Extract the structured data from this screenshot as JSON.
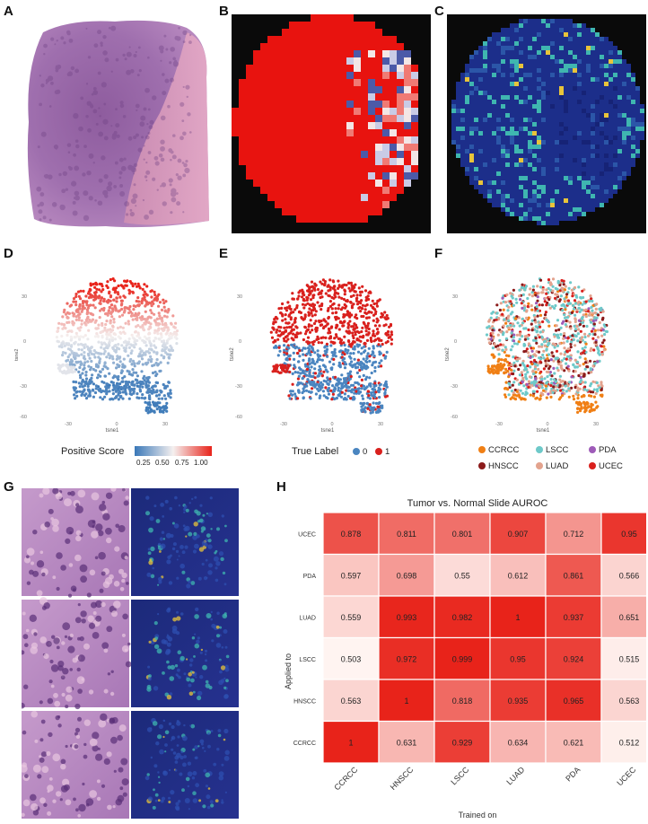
{
  "panels": {
    "A": "A",
    "B": "B",
    "C": "C",
    "D": "D",
    "E": "E",
    "F": "F",
    "G": "G",
    "H": "H"
  },
  "tsne": {
    "xlabel": "tsne1",
    "ylabel": "tsne2",
    "xticks": [
      "-30",
      "0",
      "30"
    ],
    "yticks": [
      "30",
      "0",
      "-30",
      "-60"
    ]
  },
  "legend_d": {
    "title": "Positive Score",
    "ticks": [
      "0.25",
      "0.50",
      "0.75",
      "1.00"
    ],
    "low_color": "#3a78b8",
    "mid_color": "#f5f0ef",
    "high_color": "#e8231a"
  },
  "legend_e": {
    "title": "True Label",
    "items": [
      {
        "label": "0",
        "color": "#4a85c0"
      },
      {
        "label": "1",
        "color": "#d9201d"
      }
    ]
  },
  "legend_f": {
    "items": [
      {
        "label": "CCRCC",
        "color": "#f07f14"
      },
      {
        "label": "LSCC",
        "color": "#6ec9c9"
      },
      {
        "label": "PDA",
        "color": "#9e5bb8"
      },
      {
        "label": "HNSCC",
        "color": "#8b1a1a"
      },
      {
        "label": "LUAD",
        "color": "#e3a38e"
      },
      {
        "label": "UCEC",
        "color": "#d9201d"
      }
    ]
  },
  "chart_data": {
    "type": "heatmap",
    "title": "Tumor vs. Normal Slide AUROC",
    "xlabel": "Trained on",
    "ylabel": "Applied to",
    "x_categories": [
      "CCRCC",
      "HNSCC",
      "LSCC",
      "LUAD",
      "PDA",
      "UCEC"
    ],
    "y_categories": [
      "UCEC",
      "PDA",
      "LUAD",
      "LSCC",
      "HNSCC",
      "CCRCC"
    ],
    "values": [
      [
        "0.878",
        "0.811",
        "0.801",
        "0.907",
        "0.712",
        "0.95"
      ],
      [
        "0.597",
        "0.698",
        "0.55",
        "0.612",
        "0.861",
        "0.566"
      ],
      [
        "0.559",
        "0.993",
        "0.982",
        "1",
        "0.937",
        "0.651"
      ],
      [
        "0.503",
        "0.972",
        "0.999",
        "0.95",
        "0.924",
        "0.515"
      ],
      [
        "0.563",
        "1",
        "0.818",
        "0.935",
        "0.965",
        "0.563"
      ],
      [
        "1",
        "0.631",
        "0.929",
        "0.634",
        "0.621",
        "0.512"
      ]
    ],
    "color_low": "#fff6f3",
    "color_high": "#e8231a"
  }
}
